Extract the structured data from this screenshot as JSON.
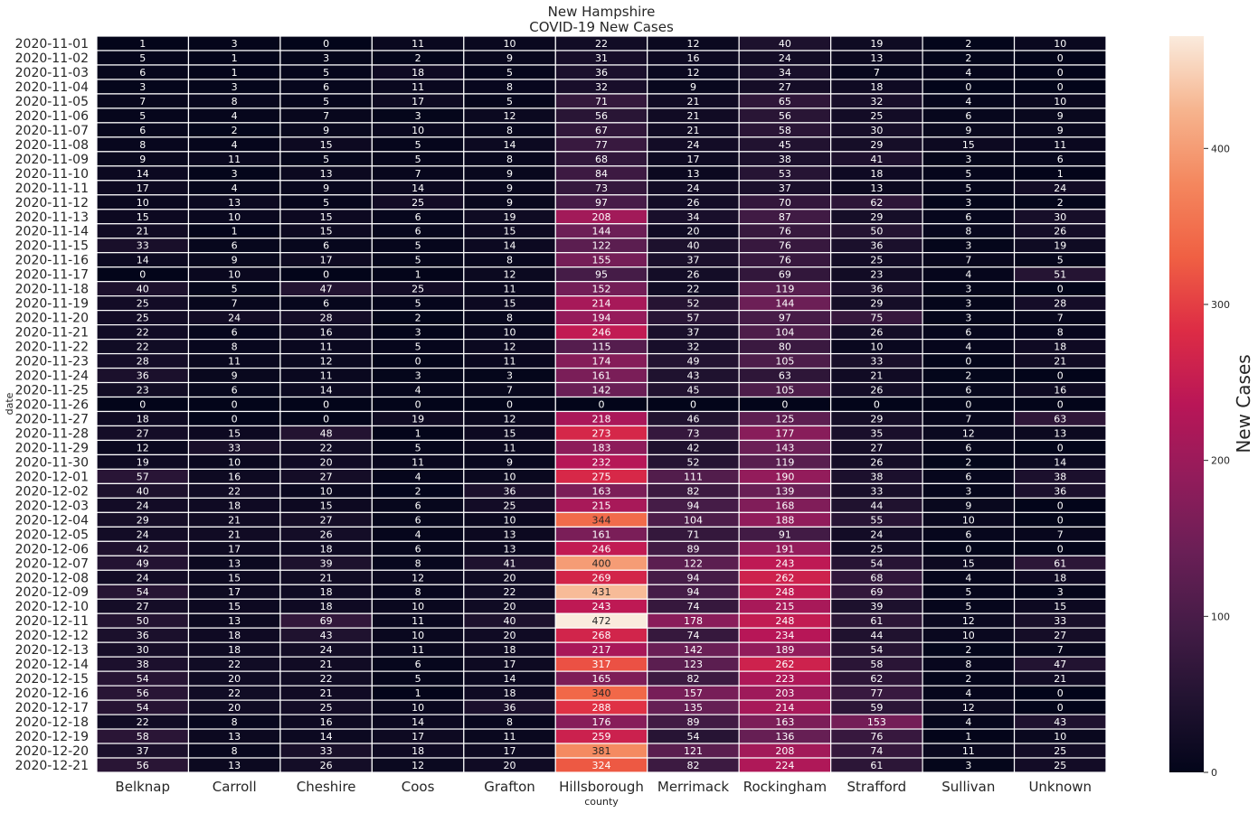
{
  "chart_data": {
    "type": "heatmap",
    "title": "New Hampshire",
    "subtitle": "COVID-19 New Cases",
    "xlabel": "county",
    "ylabel": "date",
    "colorbar_label": "New Cases",
    "colormap": "rocket",
    "vmin": 0,
    "vmax": 472,
    "colorbar_ticks": [
      0,
      100,
      200,
      300,
      400
    ],
    "columns": [
      "Belknap",
      "Carroll",
      "Cheshire",
      "Coos",
      "Grafton",
      "Hillsborough",
      "Merrimack",
      "Rockingham",
      "Strafford",
      "Sullivan",
      "Unknown"
    ],
    "rows": [
      "2020-11-01",
      "2020-11-02",
      "2020-11-03",
      "2020-11-04",
      "2020-11-05",
      "2020-11-06",
      "2020-11-07",
      "2020-11-08",
      "2020-11-09",
      "2020-11-10",
      "2020-11-11",
      "2020-11-12",
      "2020-11-13",
      "2020-11-14",
      "2020-11-15",
      "2020-11-16",
      "2020-11-17",
      "2020-11-18",
      "2020-11-19",
      "2020-11-20",
      "2020-11-21",
      "2020-11-22",
      "2020-11-23",
      "2020-11-24",
      "2020-11-25",
      "2020-11-26",
      "2020-11-27",
      "2020-11-28",
      "2020-11-29",
      "2020-11-30",
      "2020-12-01",
      "2020-12-02",
      "2020-12-03",
      "2020-12-04",
      "2020-12-05",
      "2020-12-06",
      "2020-12-07",
      "2020-12-08",
      "2020-12-09",
      "2020-12-10",
      "2020-12-11",
      "2020-12-12",
      "2020-12-13",
      "2020-12-14",
      "2020-12-15",
      "2020-12-16",
      "2020-12-17",
      "2020-12-18",
      "2020-12-19",
      "2020-12-20",
      "2020-12-21"
    ],
    "values": [
      [
        1,
        3,
        0,
        11,
        10,
        22,
        12,
        40,
        19,
        2,
        10
      ],
      [
        5,
        1,
        3,
        2,
        9,
        31,
        16,
        24,
        13,
        2,
        0
      ],
      [
        6,
        1,
        5,
        18,
        5,
        36,
        12,
        34,
        7,
        4,
        0
      ],
      [
        3,
        3,
        6,
        11,
        8,
        32,
        9,
        27,
        18,
        0,
        0
      ],
      [
        7,
        8,
        5,
        17,
        5,
        71,
        21,
        65,
        32,
        4,
        10
      ],
      [
        5,
        4,
        7,
        3,
        12,
        56,
        21,
        56,
        25,
        6,
        9
      ],
      [
        6,
        2,
        9,
        10,
        8,
        67,
        21,
        58,
        30,
        9,
        9
      ],
      [
        8,
        4,
        15,
        5,
        14,
        77,
        24,
        45,
        29,
        15,
        11
      ],
      [
        9,
        11,
        5,
        5,
        8,
        68,
        17,
        38,
        41,
        3,
        6
      ],
      [
        14,
        3,
        13,
        7,
        9,
        84,
        13,
        53,
        18,
        5,
        1
      ],
      [
        17,
        4,
        9,
        14,
        9,
        73,
        24,
        37,
        13,
        5,
        24
      ],
      [
        10,
        13,
        5,
        25,
        9,
        97,
        26,
        70,
        62,
        3,
        2
      ],
      [
        15,
        10,
        15,
        6,
        19,
        208,
        34,
        87,
        29,
        6,
        30
      ],
      [
        21,
        1,
        15,
        6,
        15,
        144,
        20,
        76,
        50,
        8,
        26
      ],
      [
        33,
        6,
        6,
        5,
        14,
        122,
        40,
        76,
        36,
        3,
        19
      ],
      [
        14,
        9,
        17,
        5,
        8,
        155,
        37,
        76,
        25,
        7,
        5
      ],
      [
        0,
        10,
        0,
        1,
        12,
        95,
        26,
        69,
        23,
        4,
        51
      ],
      [
        40,
        5,
        47,
        25,
        11,
        152,
        22,
        119,
        36,
        3,
        0
      ],
      [
        25,
        7,
        6,
        5,
        15,
        214,
        52,
        144,
        29,
        3,
        28
      ],
      [
        25,
        24,
        28,
        2,
        8,
        194,
        57,
        97,
        75,
        3,
        7
      ],
      [
        22,
        6,
        16,
        3,
        10,
        246,
        37,
        104,
        26,
        6,
        8
      ],
      [
        22,
        8,
        11,
        5,
        12,
        115,
        32,
        80,
        10,
        4,
        18
      ],
      [
        28,
        11,
        12,
        0,
        11,
        174,
        49,
        105,
        33,
        0,
        21
      ],
      [
        36,
        9,
        11,
        3,
        3,
        161,
        43,
        63,
        21,
        2,
        0
      ],
      [
        23,
        6,
        14,
        4,
        7,
        142,
        45,
        105,
        26,
        6,
        16
      ],
      [
        0,
        0,
        0,
        0,
        0,
        0,
        0,
        0,
        0,
        0,
        0
      ],
      [
        18,
        0,
        0,
        19,
        12,
        218,
        46,
        125,
        29,
        7,
        63
      ],
      [
        27,
        15,
        48,
        1,
        15,
        273,
        73,
        177,
        35,
        12,
        13
      ],
      [
        12,
        33,
        22,
        5,
        11,
        183,
        42,
        143,
        27,
        6,
        0
      ],
      [
        19,
        10,
        20,
        11,
        9,
        232,
        52,
        119,
        26,
        2,
        14
      ],
      [
        57,
        16,
        27,
        4,
        10,
        275,
        111,
        190,
        38,
        6,
        38
      ],
      [
        40,
        22,
        10,
        2,
        36,
        163,
        82,
        139,
        33,
        3,
        36
      ],
      [
        24,
        18,
        15,
        6,
        25,
        215,
        94,
        168,
        44,
        9,
        0
      ],
      [
        29,
        21,
        27,
        6,
        10,
        344,
        104,
        188,
        55,
        10,
        0
      ],
      [
        24,
        21,
        26,
        4,
        13,
        161,
        71,
        91,
        24,
        6,
        7
      ],
      [
        42,
        17,
        18,
        6,
        13,
        246,
        89,
        191,
        25,
        0,
        0
      ],
      [
        49,
        13,
        39,
        8,
        41,
        400,
        122,
        243,
        54,
        15,
        61
      ],
      [
        24,
        15,
        21,
        12,
        20,
        269,
        94,
        262,
        68,
        4,
        18
      ],
      [
        54,
        17,
        18,
        8,
        22,
        431,
        94,
        248,
        69,
        5,
        3
      ],
      [
        27,
        15,
        18,
        10,
        20,
        243,
        74,
        215,
        39,
        5,
        15
      ],
      [
        50,
        13,
        69,
        11,
        40,
        472,
        178,
        248,
        61,
        12,
        33
      ],
      [
        36,
        18,
        43,
        10,
        20,
        268,
        74,
        234,
        44,
        10,
        27
      ],
      [
        30,
        18,
        24,
        11,
        18,
        217,
        142,
        189,
        54,
        2,
        7
      ],
      [
        38,
        22,
        21,
        6,
        17,
        317,
        123,
        262,
        58,
        8,
        47
      ],
      [
        54,
        20,
        22,
        5,
        14,
        165,
        82,
        223,
        62,
        2,
        21
      ],
      [
        56,
        22,
        21,
        1,
        18,
        340,
        157,
        203,
        77,
        4,
        0
      ],
      [
        54,
        20,
        25,
        10,
        36,
        288,
        135,
        214,
        59,
        12,
        0
      ],
      [
        22,
        8,
        16,
        14,
        8,
        176,
        89,
        163,
        153,
        4,
        43
      ],
      [
        58,
        13,
        14,
        17,
        11,
        259,
        54,
        136,
        76,
        1,
        10
      ],
      [
        37,
        8,
        33,
        18,
        17,
        381,
        121,
        208,
        74,
        11,
        25
      ],
      [
        56,
        13,
        26,
        12,
        20,
        324,
        82,
        224,
        61,
        3,
        25
      ]
    ]
  }
}
